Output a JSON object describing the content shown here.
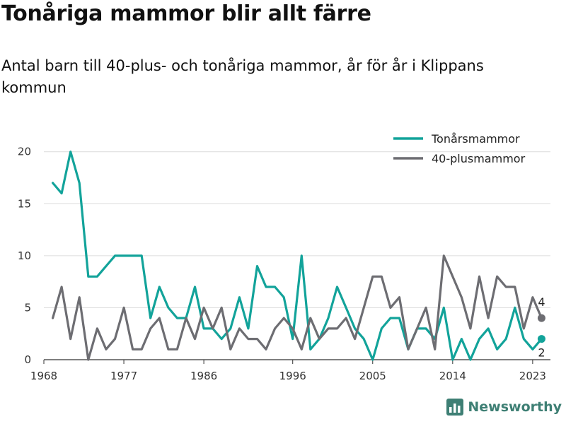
{
  "title": "Tonåriga mammor blir allt färre",
  "subtitle": "Antal barn till 40-plus- och tonåriga mammor, år för år i Klippans kommun",
  "brand": "Newsworthy",
  "colors": {
    "teal": "#12a39a",
    "gray": "#6d6d72",
    "grid": "#dcdcdc",
    "brand": "#3e7f74"
  },
  "chart_data": {
    "type": "line",
    "x": [
      1969,
      1970,
      1971,
      1972,
      1973,
      1974,
      1975,
      1976,
      1977,
      1978,
      1979,
      1980,
      1981,
      1982,
      1983,
      1984,
      1985,
      1986,
      1987,
      1988,
      1989,
      1990,
      1991,
      1992,
      1993,
      1994,
      1995,
      1996,
      1997,
      1998,
      1999,
      2000,
      2001,
      2002,
      2003,
      2004,
      2005,
      2006,
      2007,
      2008,
      2009,
      2010,
      2011,
      2012,
      2013,
      2014,
      2015,
      2016,
      2017,
      2018,
      2019,
      2020,
      2021,
      2022,
      2023,
      2024
    ],
    "series": [
      {
        "name": "Tonårsmammor",
        "color": "#12a39a",
        "values": [
          17,
          16,
          20,
          17,
          8,
          8,
          9,
          10,
          10,
          10,
          10,
          4,
          7,
          5,
          4,
          4,
          7,
          3,
          3,
          2,
          3,
          6,
          3,
          9,
          7,
          7,
          6,
          2,
          10,
          1,
          2,
          4,
          7,
          5,
          3,
          2,
          0,
          3,
          4,
          4,
          1,
          3,
          3,
          2,
          5,
          0,
          2,
          0,
          2,
          3,
          1,
          2,
          5,
          2,
          1,
          2
        ]
      },
      {
        "name": "40-plusmammor",
        "color": "#6d6d72",
        "values": [
          4,
          7,
          2,
          6,
          0,
          3,
          1,
          2,
          5,
          1,
          1,
          3,
          4,
          1,
          1,
          4,
          2,
          5,
          3,
          5,
          1,
          3,
          2,
          2,
          1,
          3,
          4,
          3,
          1,
          4,
          2,
          3,
          3,
          4,
          2,
          5,
          8,
          8,
          5,
          6,
          1,
          3,
          5,
          1,
          10,
          8,
          6,
          3,
          8,
          4,
          8,
          7,
          7,
          3,
          6,
          4
        ]
      }
    ],
    "x_ticks": [
      "1968",
      "1977",
      "1986",
      "1996",
      "2005",
      "2014",
      "2023"
    ],
    "y_ticks": [
      "0",
      "5",
      "10",
      "15",
      "20"
    ],
    "ylim": [
      0,
      21
    ],
    "xlim": [
      1968,
      2025
    ],
    "end_labels": [
      "2",
      "4"
    ],
    "legend_position": "top-right",
    "grid": "horizontal"
  }
}
